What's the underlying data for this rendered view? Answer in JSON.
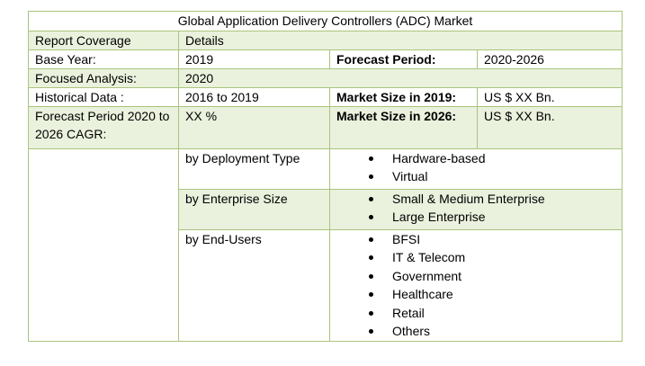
{
  "title": "Global Application Delivery Controllers (ADC) Market",
  "header": {
    "col1": "Report Coverage",
    "col2": "Details"
  },
  "base_year": {
    "label": "Base Year:",
    "value": "2019",
    "label2": "Forecast Period:",
    "value2": "2020-2026"
  },
  "focused": {
    "label": "Focused Analysis:",
    "value": "2020"
  },
  "historical": {
    "label": "Historical Data :",
    "value": "2016 to 2019",
    "label2": "Market Size in 2019:",
    "value2": "US $ XX Bn."
  },
  "cagr": {
    "label": "Forecast Period 2020 to 2026 CAGR:",
    "value": "XX %",
    "label2": "Market Size in 2026:",
    "value2": "US $ XX Bn."
  },
  "segments": [
    {
      "name": "by Deployment Type",
      "items": [
        "Hardware-based",
        "Virtual"
      ]
    },
    {
      "name": "by Enterprise Size",
      "items": [
        "Small & Medium Enterprise",
        "Large Enterprise"
      ]
    },
    {
      "name": "by End-Users",
      "items": [
        "BFSI",
        "IT & Telecom",
        "Government",
        "Healthcare",
        "Retail",
        "Others"
      ]
    }
  ]
}
